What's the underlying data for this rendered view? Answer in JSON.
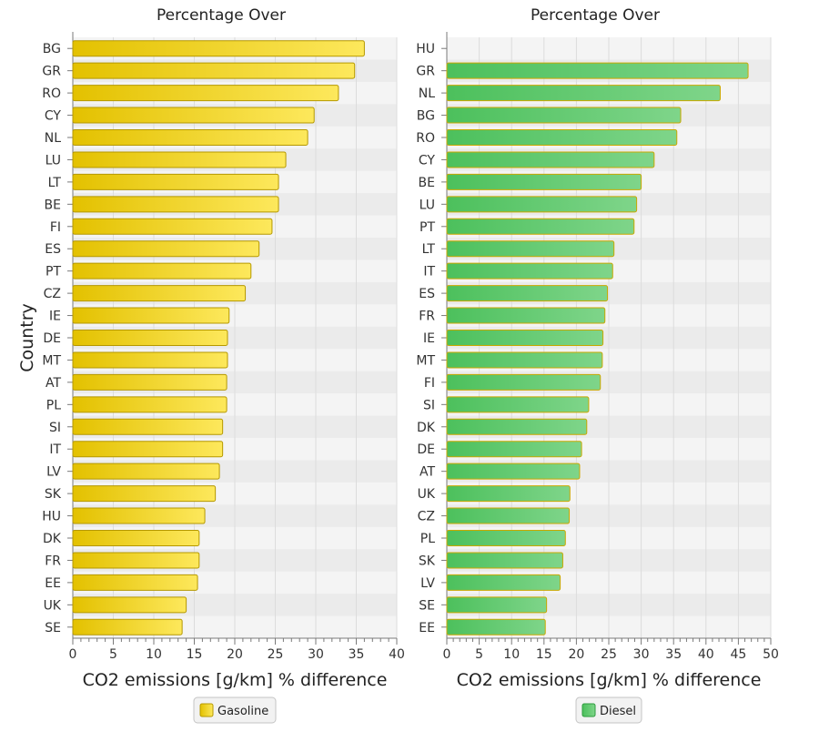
{
  "chart_data": [
    {
      "type": "bar",
      "orientation": "horizontal",
      "title": "Percentage Over",
      "xlabel": "CO2 emissions [g/km] % difference",
      "ylabel": "Country",
      "xlim": [
        0,
        40
      ],
      "xticks": [
        0,
        5,
        10,
        15,
        20,
        25,
        30,
        35,
        40
      ],
      "grid": true,
      "legend_position": "bottom",
      "series": [
        {
          "name": "Gasoline",
          "color": "#e8c400"
        }
      ],
      "categories": [
        "BG",
        "GR",
        "RO",
        "CY",
        "NL",
        "LU",
        "LT",
        "BE",
        "FI",
        "ES",
        "PT",
        "CZ",
        "IE",
        "DE",
        "MT",
        "AT",
        "PL",
        "SI",
        "IT",
        "LV",
        "SK",
        "HU",
        "DK",
        "FR",
        "EE",
        "UK",
        "SE"
      ],
      "values": [
        36.0,
        34.8,
        32.8,
        29.8,
        29.0,
        26.3,
        25.4,
        25.4,
        24.6,
        23.0,
        22.0,
        21.3,
        19.3,
        19.1,
        19.1,
        19.0,
        19.0,
        18.5,
        18.5,
        18.1,
        17.6,
        16.3,
        15.6,
        15.6,
        15.4,
        14.0,
        13.5
      ]
    },
    {
      "type": "bar",
      "orientation": "horizontal",
      "title": "Percentage Over",
      "xlabel": "CO2 emissions [g/km] % difference",
      "ylabel": "",
      "xlim": [
        0,
        50
      ],
      "xticks": [
        0,
        5,
        10,
        15,
        20,
        25,
        30,
        35,
        40,
        45,
        50
      ],
      "grid": true,
      "legend_position": "bottom",
      "series": [
        {
          "name": "Diesel",
          "color": "#55c465"
        }
      ],
      "categories": [
        "HU",
        "GR",
        "NL",
        "BG",
        "RO",
        "CY",
        "BE",
        "LU",
        "PT",
        "LT",
        "IT",
        "ES",
        "FR",
        "IE",
        "MT",
        "FI",
        "SI",
        "DK",
        "DE",
        "AT",
        "UK",
        "CZ",
        "PL",
        "SK",
        "LV",
        "SE",
        "EE"
      ],
      "values": [
        0,
        46.5,
        42.2,
        36.1,
        35.5,
        32.0,
        30.0,
        29.3,
        28.9,
        25.8,
        25.6,
        24.8,
        24.4,
        24.1,
        24.0,
        23.7,
        21.9,
        21.6,
        20.8,
        20.5,
        19.0,
        18.9,
        18.3,
        17.9,
        17.5,
        15.4,
        15.2
      ]
    }
  ]
}
